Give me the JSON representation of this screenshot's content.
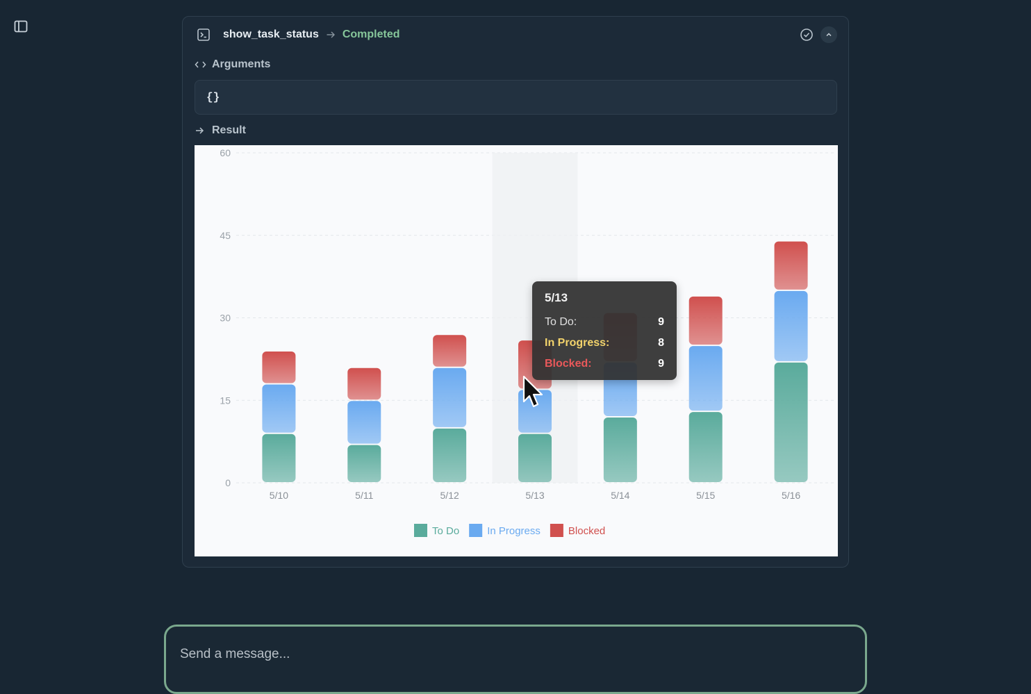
{
  "header": {
    "tool_name": "show_task_status",
    "status": "Completed"
  },
  "arguments": {
    "label": "Arguments",
    "value": "{}"
  },
  "result": {
    "label": "Result"
  },
  "chart_data": {
    "type": "bar",
    "stacked": true,
    "categories": [
      "5/10",
      "5/11",
      "5/12",
      "5/13",
      "5/14",
      "5/15",
      "5/16"
    ],
    "series": [
      {
        "name": "To Do",
        "color": "#5aab9c",
        "values": [
          9,
          7,
          10,
          9,
          12,
          13,
          22
        ]
      },
      {
        "name": "In Progress",
        "color": "#6aaaf0",
        "values": [
          9,
          8,
          11,
          8,
          10,
          12,
          13
        ]
      },
      {
        "name": "Blocked",
        "color": "#d0504e",
        "values": [
          6,
          6,
          6,
          9,
          9,
          9,
          9
        ]
      }
    ],
    "yticks": [
      0,
      15,
      30,
      45,
      60
    ],
    "ylim": [
      0,
      60
    ],
    "grid": true,
    "legend_position": "bottom",
    "highlighted_category": "5/13"
  },
  "tooltip": {
    "title": "5/13",
    "rows": [
      {
        "label": "To Do:",
        "value": "9",
        "color": "#e0e0e0"
      },
      {
        "label": "In Progress:",
        "value": "8",
        "color": "#f3d36b"
      },
      {
        "label": "Blocked:",
        "value": "9",
        "color": "#e9585a"
      }
    ]
  },
  "composer": {
    "placeholder": "Send a message..."
  },
  "icons": {
    "sidebar": "sidebar-toggle-icon",
    "terminal": "terminal-icon",
    "arrow": "arrow-right-icon",
    "check": "check-circle-icon",
    "collapse": "chevron-up-icon",
    "code": "code-icon"
  }
}
